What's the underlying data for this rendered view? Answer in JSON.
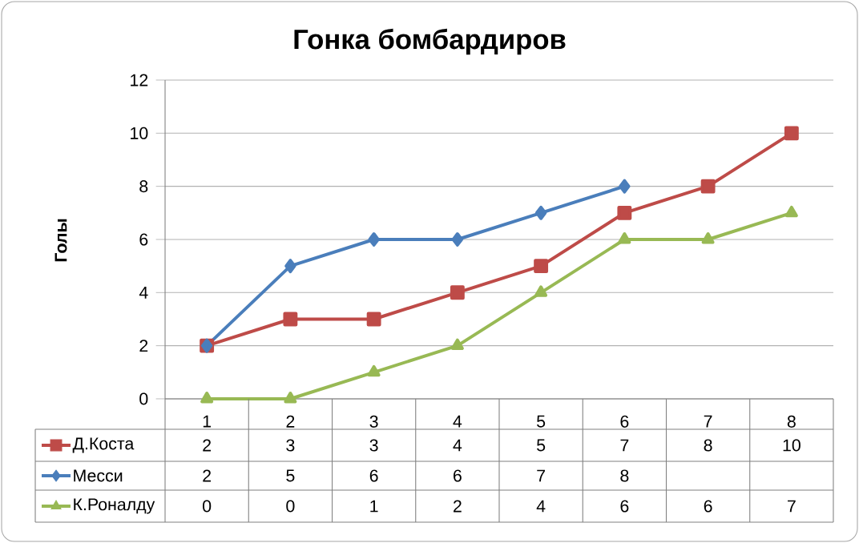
{
  "chart_data": {
    "type": "line",
    "title": "Гонка бомбардиров",
    "ylabel": "Голы",
    "categories": [
      "1",
      "2",
      "3",
      "4",
      "5",
      "6",
      "7",
      "8"
    ],
    "series": [
      {
        "name": "Д.Коста",
        "color": "#be4b48",
        "marker": "square",
        "values": [
          2,
          3,
          3,
          4,
          5,
          7,
          8,
          10
        ],
        "value_labels": [
          "2",
          "3",
          "3",
          "4",
          "5",
          "7",
          "8",
          "10"
        ]
      },
      {
        "name": "Месси",
        "color": "#4a7ebb",
        "marker": "diamond",
        "values": [
          2,
          5,
          6,
          6,
          7,
          8,
          null,
          null
        ],
        "value_labels": [
          "2",
          "5",
          "6",
          "6",
          "7",
          "8",
          null,
          null
        ]
      },
      {
        "name": "К.Роналду",
        "color": "#98b954",
        "marker": "triangle",
        "values": [
          0,
          0,
          1,
          2,
          4,
          6,
          6,
          7
        ],
        "value_labels": [
          "0",
          "0",
          "1",
          "2",
          "4",
          "6",
          "6",
          "7"
        ]
      }
    ],
    "ylim": [
      0,
      12
    ],
    "yticks": [
      0,
      2,
      4,
      6,
      8,
      10,
      12
    ],
    "grid": "y",
    "legend": "bottom",
    "line_style": "solid"
  }
}
